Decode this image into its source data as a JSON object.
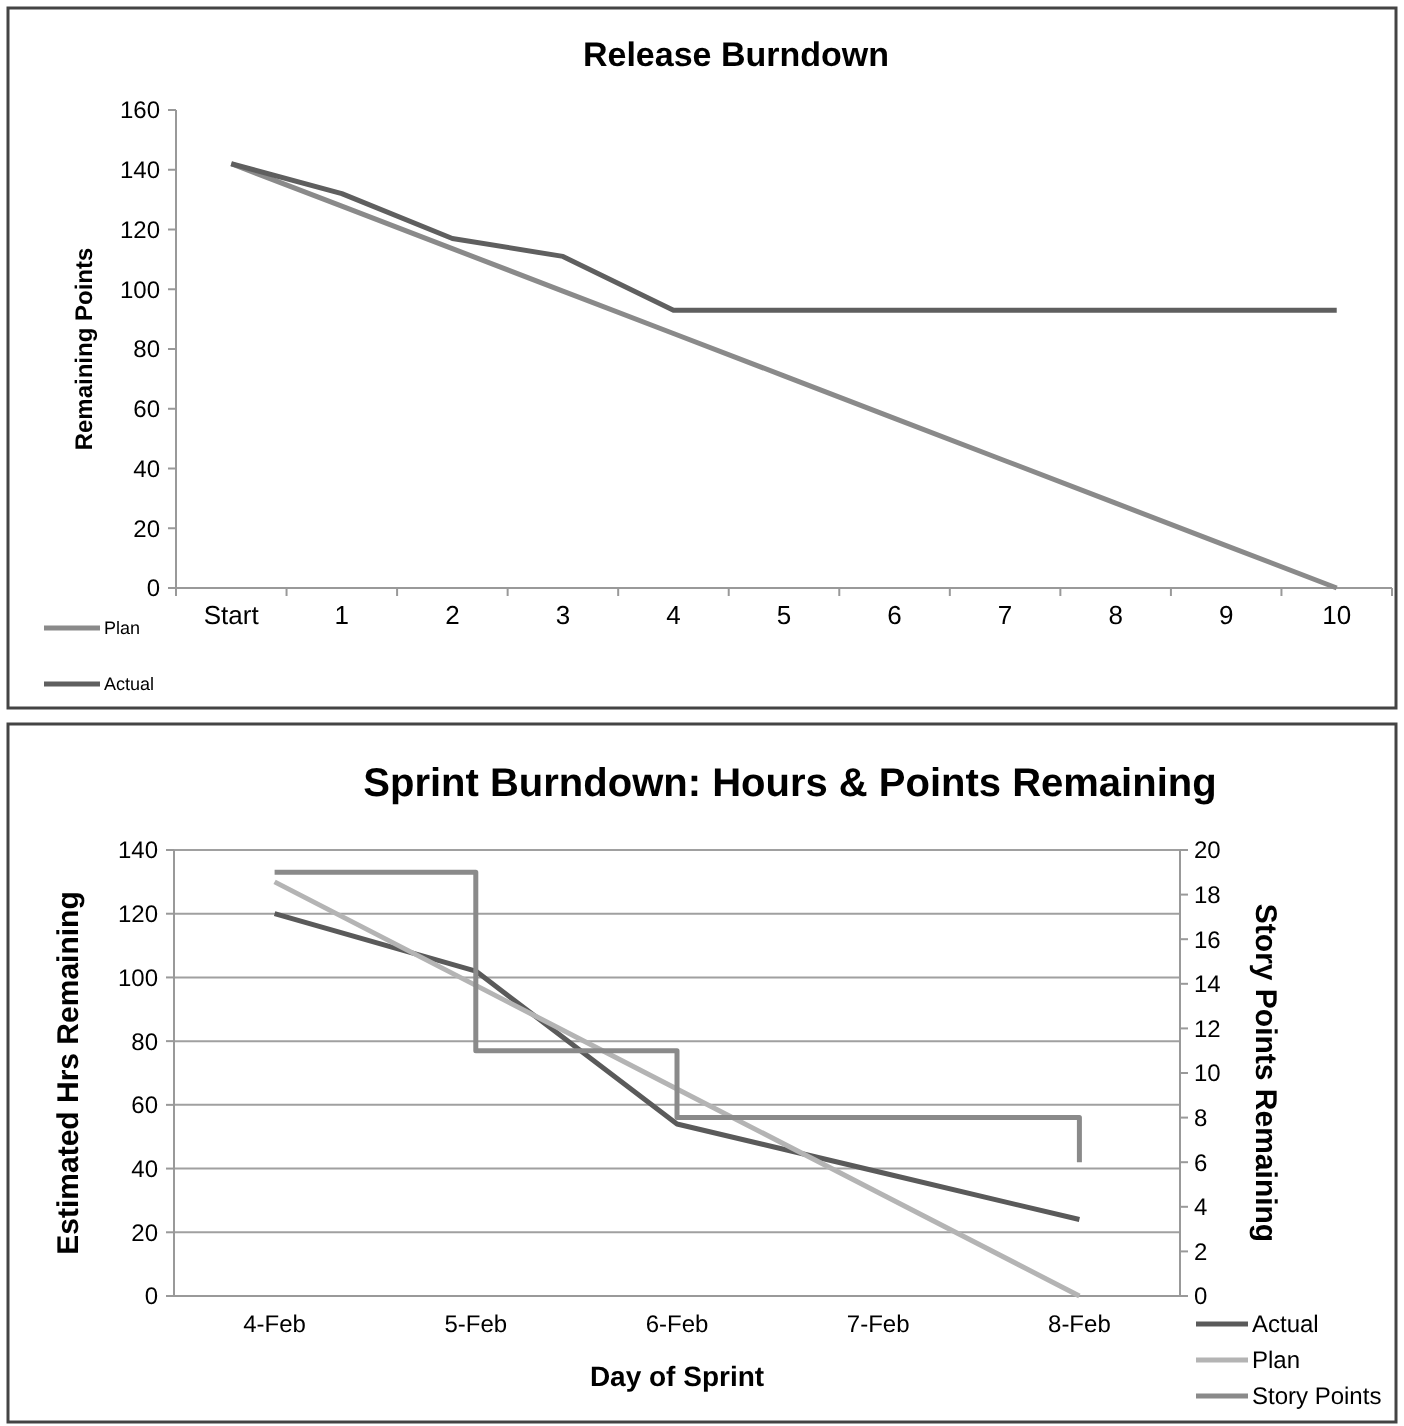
{
  "chart_data": [
    {
      "type": "line",
      "title": "Release Burndown",
      "ylabel": "Remaining Points",
      "categories": [
        "Start",
        "1",
        "2",
        "3",
        "4",
        "5",
        "6",
        "7",
        "8",
        "9",
        "10"
      ],
      "ylim": [
        0,
        160
      ],
      "yticks": [
        0,
        20,
        40,
        60,
        80,
        100,
        120,
        140,
        160
      ],
      "grid": false,
      "legend": "bottom left",
      "series": [
        {
          "name": "Plan",
          "color": "#8a8a8a",
          "values": [
            142,
            127.8,
            113.6,
            99.4,
            85.2,
            71,
            56.8,
            42.6,
            28.4,
            14.2,
            0
          ]
        },
        {
          "name": "Actual",
          "color": "#5f5f5f",
          "values": [
            142,
            132,
            117,
            111,
            93,
            93,
            93,
            93,
            93,
            93,
            93
          ]
        }
      ]
    },
    {
      "type": "line",
      "title": "Sprint Burndown: Hours & Points Remaining",
      "xlabel": "Day of Sprint",
      "ylabel": "Estimated Hrs Remaining",
      "y2label": "Story Points Remaining",
      "categories": [
        "4-Feb",
        "5-Feb",
        "6-Feb",
        "7-Feb",
        "8-Feb"
      ],
      "ylim": [
        0,
        140
      ],
      "yticks": [
        0,
        20,
        40,
        60,
        80,
        100,
        120,
        140
      ],
      "y2lim": [
        0,
        20
      ],
      "y2ticks": [
        0,
        2,
        4,
        6,
        8,
        10,
        12,
        14,
        16,
        18,
        20
      ],
      "grid": "y",
      "legend": "bottom right",
      "series": [
        {
          "name": "Actual",
          "color": "#5a5a5a",
          "values": [
            120,
            102,
            54,
            39,
            24
          ]
        },
        {
          "name": "Plan",
          "color": "#b4b4b4",
          "values": [
            130,
            97.5,
            65,
            32.5,
            0
          ]
        },
        {
          "name": "Story Points",
          "type": "step",
          "axis": "y2",
          "color": "#8a8a8a",
          "values": [
            19,
            11,
            8,
            8,
            6
          ]
        }
      ]
    }
  ]
}
